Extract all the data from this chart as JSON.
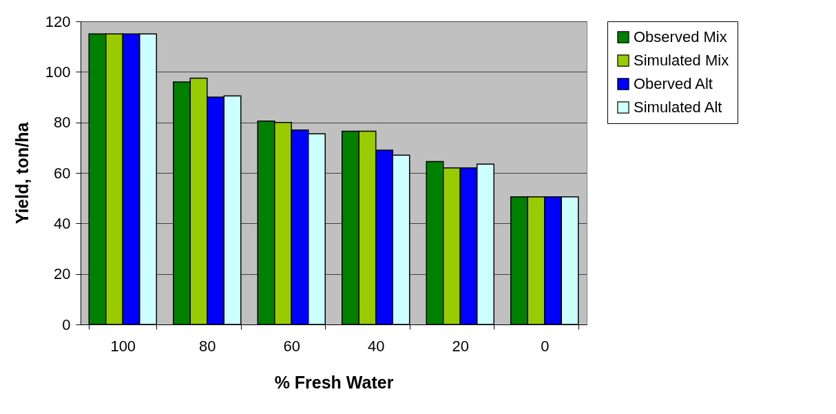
{
  "chart_data": {
    "type": "bar",
    "xlabel": "% Fresh Water",
    "ylabel": "Yield, ton/ha",
    "categories": [
      "100",
      "80",
      "60",
      "40",
      "20",
      "0"
    ],
    "series": [
      {
        "name": "Observed Mix",
        "color": "#008000",
        "values": [
          115,
          96,
          80.5,
          76.5,
          64.5,
          50.5
        ]
      },
      {
        "name": "Simulated Mix",
        "color": "#99cc00",
        "values": [
          115,
          97.5,
          80,
          76.5,
          62,
          50.5
        ]
      },
      {
        "name": "Oberved Alt",
        "color": "#0000ff",
        "values": [
          115,
          90,
          77,
          69,
          62,
          50.5
        ]
      },
      {
        "name": "Simulated Alt",
        "color": "#ccffff",
        "values": [
          115,
          90.5,
          75.5,
          67,
          63.5,
          50.5
        ]
      }
    ],
    "ylim": [
      0,
      120
    ],
    "yticks": [
      0,
      20,
      40,
      60,
      80,
      100,
      120
    ],
    "grid": "y",
    "legend": "right"
  }
}
